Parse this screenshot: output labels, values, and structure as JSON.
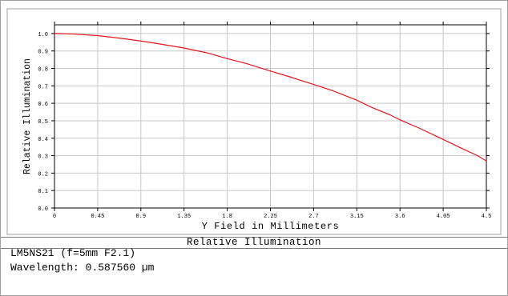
{
  "chart_data": {
    "type": "line",
    "title": "",
    "xlabel": "Y Field in Millimeters",
    "ylabel": "Relative Illumination",
    "xlim": [
      0,
      4.5
    ],
    "ylim": [
      0,
      1.05
    ],
    "x_ticks": [
      "0",
      "0.45",
      "0.9",
      "1.35",
      "1.8",
      "2.25",
      "2.7",
      "3.15",
      "3.6",
      "4.05",
      "4.5"
    ],
    "y_ticks": [
      "0.0",
      "0.1",
      "0.2",
      "0.3",
      "0.4",
      "0.5",
      "0.6",
      "0.7",
      "0.8",
      "0.9",
      "1.0"
    ],
    "grid": true,
    "series": [
      {
        "color": "#e8141c",
        "x": [
          0,
          0.2,
          0.45,
          0.7,
          0.9,
          1.1,
          1.35,
          1.6,
          1.8,
          2.0,
          2.25,
          2.45,
          2.7,
          2.9,
          3.15,
          3.3,
          3.5,
          3.6,
          3.8,
          4.05,
          4.25,
          4.4,
          4.5
        ],
        "y": [
          1.0,
          0.997,
          0.988,
          0.972,
          0.957,
          0.94,
          0.917,
          0.888,
          0.856,
          0.828,
          0.785,
          0.752,
          0.708,
          0.672,
          0.618,
          0.578,
          0.533,
          0.505,
          0.458,
          0.393,
          0.34,
          0.302,
          0.27
        ]
      }
    ]
  },
  "footer": {
    "title": "Relative Illumination",
    "lens_name": "LM5NS21 (f=5mm F2.1)",
    "wavelength_label": "Wavelength:",
    "wavelength_value": "0.587560 µm"
  }
}
